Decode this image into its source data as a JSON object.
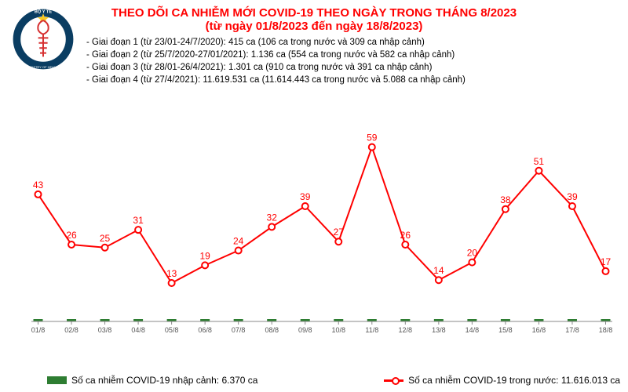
{
  "title_line1": "THEO DÕI CA NHIỄM MỚI COVID-19 THEO NGÀY TRONG THÁNG 8/2023",
  "title_line2": "(từ ngày 01/8/2023 đến ngày 18/8/2023)",
  "stages": [
    "- Giai đoạn 1 (từ 23/01-24/7/2020): 415 ca (106 ca trong nước và 309 ca nhập cảnh)",
    "- Giai đoạn 2 (từ 25/7/2020-27/01/2021): 1.136 ca (554 ca trong nước và 582 ca nhập cảnh)",
    "- Giai đoạn 3 (từ 28/01-26/4/2021): 1.301 ca (910 ca trong nước và 391 ca nhập cảnh)",
    "- Giai đoạn 4 (từ 27/4/2021): 11.619.531 ca (11.614.443 ca trong nước và 5.088 ca nhập cảnh)"
  ],
  "legend_import": "Số ca nhiễm COVID-19 nhập cảnh: 6.370 ca",
  "legend_domestic": "Số ca nhiễm COVID-19 trong nước: 11.616.013 ca",
  "logo_top": "BỘ Y TẾ",
  "logo_bottom": "MINISTRY OF HEALTH",
  "chart": {
    "type": "line",
    "x_labels": [
      "01/8",
      "02/8",
      "03/8",
      "04/8",
      "05/8",
      "06/8",
      "07/8",
      "08/8",
      "09/8",
      "10/8",
      "11/8",
      "12/8",
      "13/8",
      "14/8",
      "15/8",
      "16/8",
      "17/8",
      "18/8"
    ],
    "values": [
      43,
      26,
      25,
      31,
      13,
      19,
      24,
      32,
      39,
      27,
      59,
      26,
      14,
      20,
      38,
      51,
      39,
      17
    ],
    "y_max": 65,
    "y_min": 0,
    "line_color": "#ff0000",
    "marker_fill": "#ffffff",
    "marker_stroke": "#ff0000",
    "line_width": 2,
    "marker_radius": 4,
    "bar_color": "#2e7d32",
    "bar_height": 1,
    "label_fontsize": 12,
    "xlabel_fontsize": 9,
    "grid_color": "#cccccc",
    "point_label_color": "#ff0000"
  },
  "logo": {
    "outer_color": "#0a3d62",
    "star_color": "#f9ca24",
    "snake_color": "#d63031",
    "text_color": "#ffffff"
  }
}
